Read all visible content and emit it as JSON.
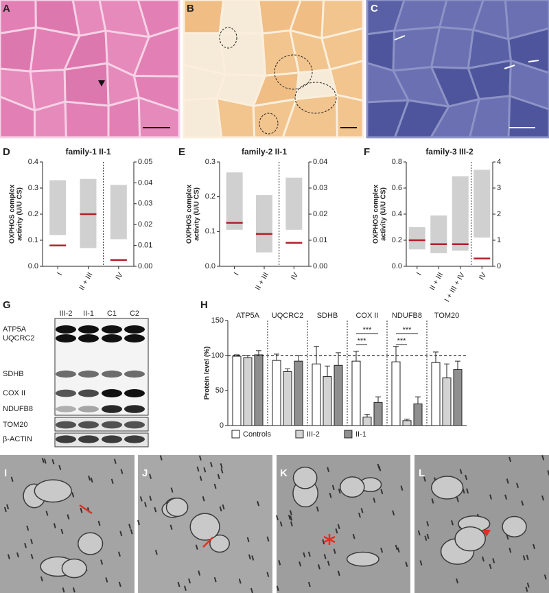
{
  "panel_labels": [
    "A",
    "B",
    "C",
    "D",
    "E",
    "F",
    "G",
    "H",
    "I",
    "J",
    "K",
    "L"
  ],
  "blot": {
    "lanes": [
      "III-2",
      "II-1",
      "C1",
      "C2"
    ],
    "proteins": [
      "ATP5A",
      "UQCRC2",
      "SDHB",
      "COX II",
      "NDUFB8",
      "TOM20",
      "β-ACTIN"
    ]
  },
  "chart_data": [
    {
      "type": "range",
      "title": "family-1 II-1",
      "y_label": [
        "OXPHOS complex",
        "activity (U/U CS)"
      ],
      "categories": [
        "I",
        "II + III",
        "IV"
      ],
      "low": [
        0.12,
        0.07,
        0.013
      ],
      "high": [
        0.33,
        0.335,
        0.039
      ],
      "values": [
        0.08,
        0.2,
        0.003
      ],
      "axes": [
        "y",
        "y",
        "y2"
      ],
      "ylim": [
        0,
        0.4
      ],
      "yticks": [
        {
          "value": 0,
          "label": "0.0"
        },
        0.1,
        0.2,
        0.3,
        0.4
      ],
      "y2lim": [
        0,
        0.05
      ],
      "y2ticks": [
        {
          "value": 0,
          "label": "0.00"
        },
        0.01,
        0.02,
        0.03,
        0.04,
        0.05
      ],
      "range_color": "#d0d0d0",
      "value_color": "#b0202a"
    },
    {
      "type": "range",
      "title": "family-2 II-1",
      "y_label": [
        "OXPHOS complex",
        "activity (U/U CS)"
      ],
      "categories": [
        "I",
        "II + III",
        "IV"
      ],
      "low": [
        0.105,
        0.04,
        0.014
      ],
      "high": [
        0.27,
        0.205,
        0.034
      ],
      "values": [
        0.125,
        0.093,
        0.009
      ],
      "axes": [
        "y",
        "y",
        "y2"
      ],
      "ylim": [
        0,
        0.3
      ],
      "yticks": [
        {
          "value": 0,
          "label": "0.0"
        },
        0.1,
        0.2,
        0.3
      ],
      "y2lim": [
        0,
        0.04
      ],
      "y2ticks": [
        {
          "value": 0,
          "label": "0.00"
        },
        0.01,
        0.02,
        0.03,
        0.04
      ],
      "range_color": "#d0d0d0",
      "value_color": "#b0202a"
    },
    {
      "type": "range",
      "title": "family-3 III-2",
      "y_label": [
        "OXPHOS complex",
        "activity (U/U CS)"
      ],
      "categories": [
        "I",
        "II + III",
        "I + III + IV",
        "IV"
      ],
      "low": [
        0.13,
        0.1,
        0.12,
        1.1
      ],
      "high": [
        0.3,
        0.39,
        0.69,
        3.7
      ],
      "values": [
        0.2,
        0.17,
        0.17,
        0.3
      ],
      "axes": [
        "y",
        "y",
        "y",
        "y2"
      ],
      "ylim": [
        0,
        0.8
      ],
      "yticks": [
        {
          "value": 0,
          "label": "0.0"
        },
        0.2,
        0.4,
        0.6,
        0.8
      ],
      "y2lim": [
        0,
        4
      ],
      "y2ticks": [
        0,
        1,
        2,
        3,
        4
      ],
      "range_color": "#d0d0d0",
      "value_color": "#b0202a"
    },
    {
      "type": "bar",
      "y_label": "Protein level (%)",
      "categories": [
        "ATP5A",
        "UQCRC2",
        "SDHB",
        "COX II",
        "NDUFB8",
        "TOM20"
      ],
      "series": [
        {
          "name": "Controls",
          "color": "#ffffff",
          "values": [
            99,
            93,
            88,
            92,
            91,
            90
          ],
          "errors": [
            2,
            9,
            25,
            14,
            22,
            15
          ]
        },
        {
          "name": "III-2",
          "color": "#d3d3d3",
          "values": [
            97,
            77,
            70,
            12,
            7,
            68
          ],
          "errors": [
            3,
            4,
            15,
            4,
            2,
            20
          ]
        },
        {
          "name": "II-1",
          "color": "#8f8f8f",
          "values": [
            101,
            92,
            86,
            33,
            31,
            80
          ],
          "errors": [
            6,
            8,
            18,
            8,
            10,
            12
          ]
        }
      ],
      "ylim": [
        0,
        150
      ],
      "yticks": [
        0,
        50,
        100,
        150
      ],
      "reference_line": 100,
      "annotations": [
        "***",
        "***",
        "***",
        "***"
      ],
      "legend": "bottom"
    }
  ]
}
